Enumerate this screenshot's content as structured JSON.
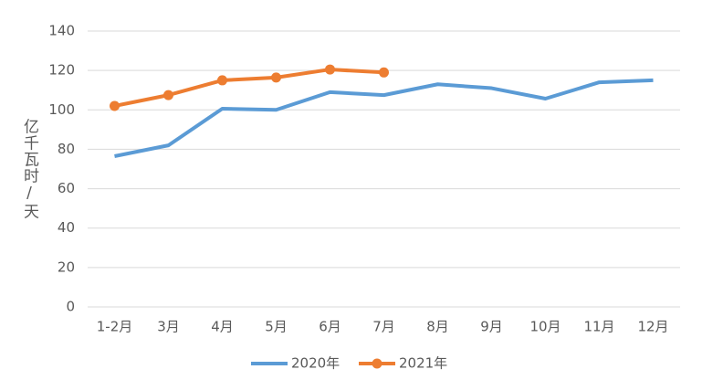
{
  "chart_data": {
    "type": "line",
    "ylabel": "亿千瓦时/天",
    "categories": [
      "1-2月",
      "3月",
      "4月",
      "5月",
      "6月",
      "7月",
      "8月",
      "9月",
      "10月",
      "11月",
      "12月"
    ],
    "series": [
      {
        "name": "2020年",
        "color": "#5b9bd5",
        "markers": false,
        "values": [
          76.5,
          82,
          100.6,
          100,
          109,
          107.5,
          113,
          111,
          105.7,
          114,
          115
        ]
      },
      {
        "name": "2021年",
        "color": "#ed7d31",
        "markers": true,
        "values": [
          102,
          107.5,
          115,
          116.4,
          120.5,
          119,
          null,
          null,
          null,
          null,
          null
        ]
      }
    ],
    "ylim": [
      0,
      140
    ],
    "yticks": [
      0,
      20,
      40,
      60,
      80,
      100,
      120,
      140
    ],
    "grid": true,
    "legend": "bottom"
  }
}
